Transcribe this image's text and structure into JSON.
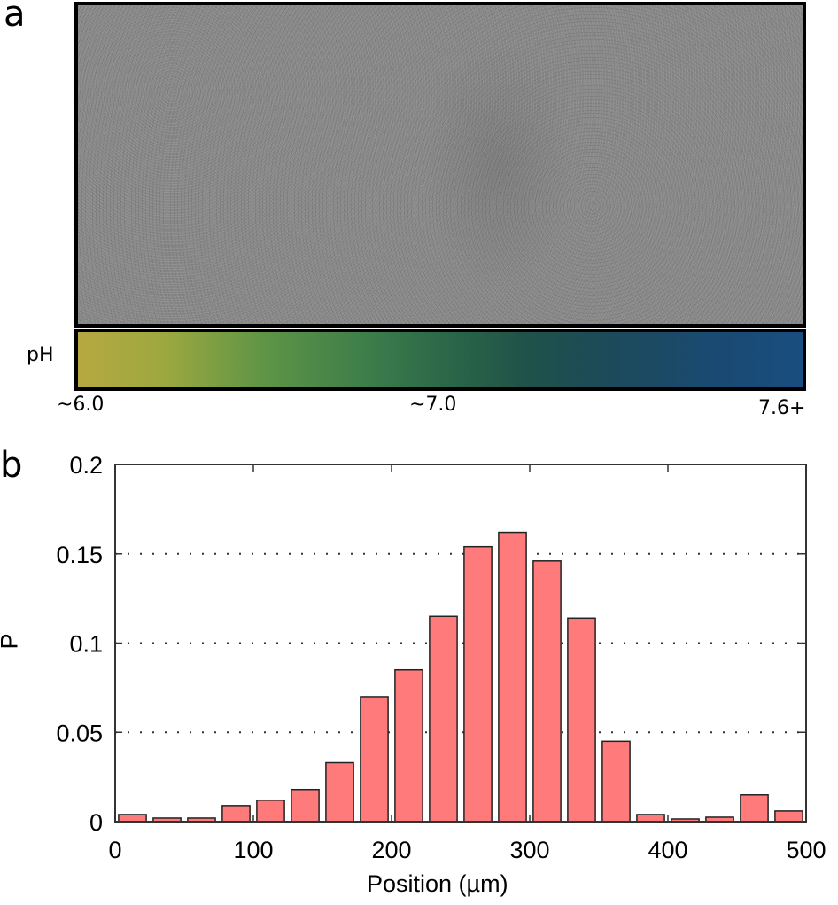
{
  "panel_a": {
    "label": "a",
    "image_description": "grayscale phase-contrast micrograph with dark cells concentrated in a central band",
    "ph_bar": {
      "axis_label": "pH",
      "tick_labels": [
        "~6.0",
        "~7.0",
        "7.6+"
      ],
      "colors": [
        "#b7a840",
        "#3c7d4a",
        "#1a4d80"
      ]
    }
  },
  "panel_b": {
    "label": "b"
  },
  "chart_data": {
    "type": "bar",
    "title": "",
    "xlabel": "Position (µm)",
    "ylabel": "P",
    "xlim": [
      0,
      500
    ],
    "ylim": [
      0,
      0.2
    ],
    "xticks": [
      0,
      100,
      200,
      300,
      400,
      500
    ],
    "xtick_labels": [
      "0",
      "100",
      "200",
      "300",
      "400",
      "500"
    ],
    "yticks": [
      0,
      0.05,
      0.1,
      0.15,
      0.2
    ],
    "ytick_labels": [
      "0",
      "0.05",
      "0.1",
      "0.15",
      "0.2"
    ],
    "grid": "horizontal dotted",
    "bar_color": "#ff7b7b",
    "bar_edge_color": "#222222",
    "x": [
      12.5,
      37.5,
      62.5,
      87.5,
      112.5,
      137.5,
      162.5,
      187.5,
      212.5,
      237.5,
      262.5,
      287.5,
      312.5,
      337.5,
      362.5,
      387.5,
      412.5,
      437.5,
      462.5,
      487.5
    ],
    "values": [
      0.004,
      0.002,
      0.002,
      0.009,
      0.012,
      0.018,
      0.033,
      0.07,
      0.085,
      0.115,
      0.154,
      0.162,
      0.146,
      0.114,
      0.045,
      0.004,
      0.0015,
      0.0025,
      0.015,
      0.006
    ]
  }
}
